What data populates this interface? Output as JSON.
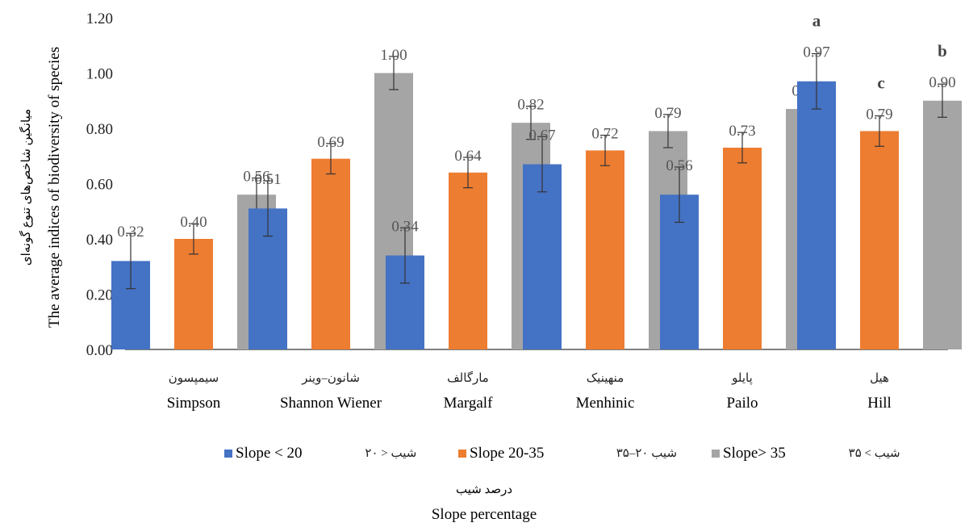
{
  "chart_data": {
    "type": "bar",
    "categories": [
      {
        "fa": "سیمپسون",
        "en": "Simpson"
      },
      {
        "fa": "شانون–وینر",
        "en": "Shannon Wiener"
      },
      {
        "fa": "مارگالف",
        "en": "Margalf"
      },
      {
        "fa": "منهینیک",
        "en": "Menhinic"
      },
      {
        "fa": "پایلو",
        "en": "Pailo"
      },
      {
        "fa": "هیل",
        "en": "Hill"
      }
    ],
    "series": [
      {
        "name": "Slope < 20",
        "name_fa": "شیب  < ۲۰",
        "color": "#4472C4",
        "values": [
          0.32,
          0.51,
          0.34,
          0.67,
          0.56,
          0.97
        ],
        "labels": [
          "0.32",
          "0.51",
          "0.34",
          "0.67",
          "0.56",
          "0.97"
        ],
        "errors": [
          0.1,
          0.1,
          0.1,
          0.1,
          0.1,
          0.1
        ]
      },
      {
        "name": "Slope 20-35",
        "name_fa": "شیب ۲۰–۳۵",
        "color": "#ED7D31",
        "values": [
          0.4,
          0.69,
          0.64,
          0.72,
          0.73,
          0.79
        ],
        "labels": [
          "0.40",
          "0.69",
          "0.64",
          "0.72",
          "0.73",
          "0.79"
        ],
        "errors": [
          0.055,
          0.055,
          0.055,
          0.055,
          0.055,
          0.055
        ]
      },
      {
        "name": "Slope> 35",
        "name_fa": "شیب > ۳۵",
        "color": "#A5A5A5",
        "values": [
          0.56,
          1.0,
          0.82,
          0.79,
          0.87,
          0.9
        ],
        "labels": [
          "0.56",
          "1.00",
          "0.82",
          "0.79",
          "0.87",
          "0.90"
        ],
        "errors": [
          0.06,
          0.06,
          0.06,
          0.06,
          0.06,
          0.06
        ]
      }
    ],
    "significance_letters": [
      {
        "category": 5,
        "series": 0,
        "letter": "a"
      },
      {
        "category": 5,
        "series": 1,
        "letter": "c"
      },
      {
        "category": 5,
        "series": 2,
        "letter": "b"
      }
    ],
    "yticks": [
      "0.00",
      "0.20",
      "0.40",
      "0.60",
      "0.80",
      "1.00",
      "1.20"
    ],
    "ylim": [
      0,
      1.2
    ],
    "ylabel": "The average indices of biodiversity of species",
    "ylabel_fa": "میانگین شاخص‌های تنوع گونه‌ای",
    "xlabel": "Slope percentage",
    "xlabel_fa": "درصد شیب",
    "legend_position": "bottom",
    "grid": false
  }
}
